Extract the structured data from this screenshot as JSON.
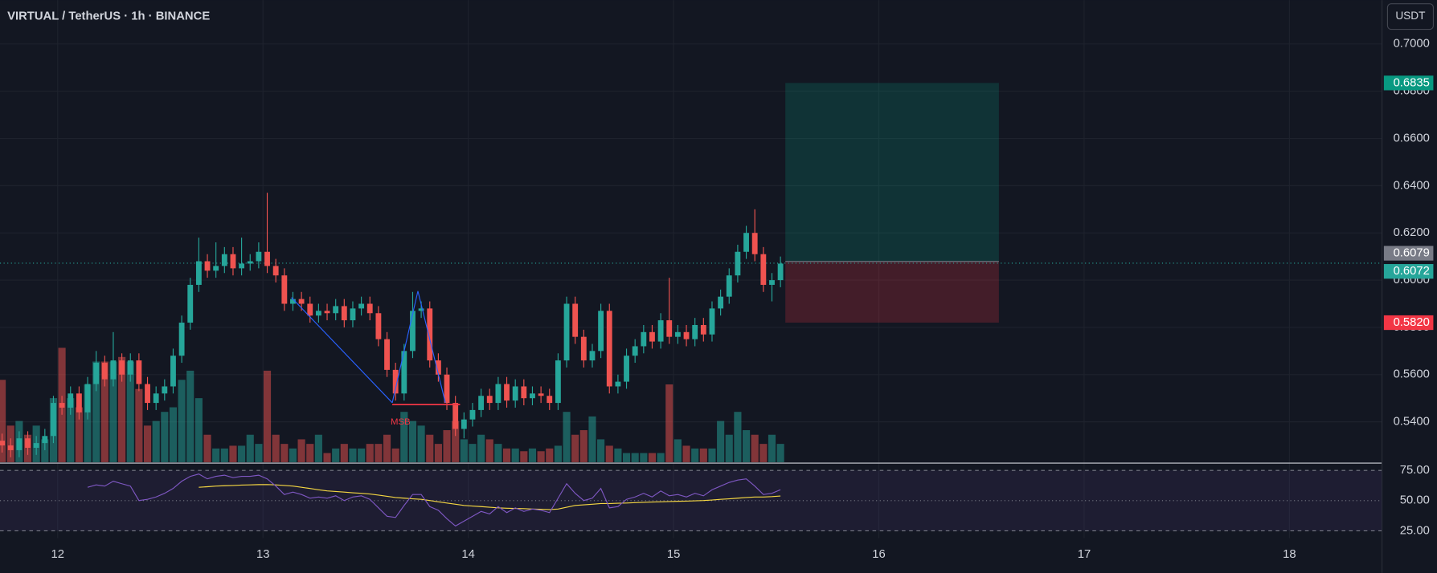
{
  "header": {
    "title": "VIRTUAL / TetherUS · 1h · BINANCE",
    "currency": "USDT"
  },
  "chart_data": {
    "type": "candlestick",
    "x": [
      11.7292,
      11.7708,
      11.8125,
      11.8542,
      11.8958,
      11.9375,
      11.9792,
      12.0208,
      12.0625,
      12.1042,
      12.1458,
      12.1875,
      12.2292,
      12.2708,
      12.3125,
      12.3542,
      12.3958,
      12.4375,
      12.4792,
      12.5208,
      12.5625,
      12.6042,
      12.6458,
      12.6875,
      12.7292,
      12.7708,
      12.8125,
      12.8542,
      12.8958,
      12.9375,
      12.9792,
      13.0208,
      13.0625,
      13.1042,
      13.1458,
      13.1875,
      13.2292,
      13.2708,
      13.3125,
      13.3542,
      13.3958,
      13.4375,
      13.4792,
      13.5208,
      13.5625,
      13.6042,
      13.6458,
      13.6875,
      13.7292,
      13.7708,
      13.8125,
      13.8542,
      13.8958,
      13.9375,
      13.9792,
      14.0208,
      14.0625,
      14.1042,
      14.1458,
      14.1875,
      14.2292,
      14.2708,
      14.3125,
      14.3542,
      14.3958,
      14.4375,
      14.4792,
      14.5208,
      14.5625,
      14.6042,
      14.6458,
      14.6875,
      14.7292,
      14.7708,
      14.8125,
      14.8542,
      14.8958,
      14.9375,
      14.9792,
      15.0208,
      15.0625,
      15.1042,
      15.1458,
      15.1875,
      15.2292,
      15.2708,
      15.3125,
      15.3542,
      15.3958,
      15.4375,
      15.4792,
      15.5208
    ],
    "open": [
      0.532,
      0.53,
      0.528,
      0.533,
      0.529,
      0.531,
      0.534,
      0.548,
      0.546,
      0.552,
      0.544,
      0.556,
      0.565,
      0.558,
      0.566,
      0.56,
      0.566,
      0.556,
      0.548,
      0.552,
      0.555,
      0.568,
      0.582,
      0.598,
      0.608,
      0.604,
      0.606,
      0.611,
      0.605,
      0.607,
      0.608,
      0.612,
      0.606,
      0.602,
      0.59,
      0.592,
      0.59,
      0.585,
      0.587,
      0.586,
      0.589,
      0.583,
      0.588,
      0.59,
      0.586,
      0.575,
      0.562,
      0.552,
      0.57,
      0.587,
      0.588,
      0.566,
      0.56,
      0.548,
      0.537,
      0.541,
      0.545,
      0.551,
      0.548,
      0.556,
      0.549,
      0.555,
      0.55,
      0.552,
      0.551,
      0.548,
      0.566,
      0.59,
      0.576,
      0.566,
      0.57,
      0.587,
      0.555,
      0.557,
      0.568,
      0.572,
      0.578,
      0.574,
      0.583,
      0.576,
      0.578,
      0.575,
      0.581,
      0.577,
      0.588,
      0.593,
      0.602,
      0.612,
      0.62,
      0.611,
      0.598,
      0.6
    ],
    "high": [
      0.535,
      0.533,
      0.536,
      0.536,
      0.534,
      0.537,
      0.551,
      0.551,
      0.555,
      0.555,
      0.559,
      0.57,
      0.568,
      0.578,
      0.569,
      0.569,
      0.569,
      0.559,
      0.555,
      0.558,
      0.571,
      0.585,
      0.601,
      0.618,
      0.611,
      0.616,
      0.614,
      0.614,
      0.618,
      0.611,
      0.616,
      0.637,
      0.609,
      0.605,
      0.595,
      0.595,
      0.593,
      0.59,
      0.59,
      0.592,
      0.592,
      0.591,
      0.593,
      0.593,
      0.589,
      0.578,
      0.565,
      0.573,
      0.595,
      0.591,
      0.591,
      0.569,
      0.563,
      0.551,
      0.544,
      0.548,
      0.554,
      0.554,
      0.559,
      0.559,
      0.558,
      0.558,
      0.555,
      0.555,
      0.554,
      0.569,
      0.593,
      0.593,
      0.579,
      0.573,
      0.59,
      0.59,
      0.56,
      0.571,
      0.575,
      0.581,
      0.581,
      0.586,
      0.601,
      0.581,
      0.581,
      0.584,
      0.584,
      0.591,
      0.596,
      0.605,
      0.615,
      0.623,
      0.63,
      0.614,
      0.603,
      0.61
    ],
    "low": [
      0.527,
      0.525,
      0.525,
      0.526,
      0.526,
      0.528,
      0.531,
      0.543,
      0.543,
      0.541,
      0.541,
      0.553,
      0.555,
      0.555,
      0.557,
      0.557,
      0.553,
      0.545,
      0.545,
      0.549,
      0.552,
      0.565,
      0.579,
      0.595,
      0.601,
      0.601,
      0.603,
      0.602,
      0.602,
      0.604,
      0.605,
      0.603,
      0.599,
      0.587,
      0.587,
      0.587,
      0.582,
      0.582,
      0.583,
      0.583,
      0.58,
      0.58,
      0.585,
      0.583,
      0.572,
      0.559,
      0.549,
      0.549,
      0.567,
      0.584,
      0.563,
      0.557,
      0.545,
      0.534,
      0.533,
      0.538,
      0.542,
      0.545,
      0.545,
      0.546,
      0.546,
      0.547,
      0.547,
      0.548,
      0.545,
      0.545,
      0.563,
      0.573,
      0.563,
      0.563,
      0.567,
      0.552,
      0.552,
      0.554,
      0.565,
      0.569,
      0.571,
      0.571,
      0.573,
      0.573,
      0.572,
      0.572,
      0.574,
      0.574,
      0.585,
      0.59,
      0.599,
      0.609,
      0.608,
      0.595,
      0.591,
      0.597
    ],
    "close": [
      0.53,
      0.528,
      0.533,
      0.529,
      0.531,
      0.534,
      0.548,
      0.546,
      0.552,
      0.544,
      0.556,
      0.565,
      0.558,
      0.566,
      0.56,
      0.566,
      0.556,
      0.548,
      0.552,
      0.555,
      0.568,
      0.582,
      0.598,
      0.608,
      0.604,
      0.606,
      0.611,
      0.605,
      0.607,
      0.608,
      0.612,
      0.606,
      0.602,
      0.59,
      0.592,
      0.59,
      0.585,
      0.587,
      0.586,
      0.589,
      0.583,
      0.588,
      0.59,
      0.586,
      0.575,
      0.562,
      0.552,
      0.57,
      0.587,
      0.588,
      0.566,
      0.56,
      0.548,
      0.537,
      0.541,
      0.545,
      0.551,
      0.548,
      0.556,
      0.549,
      0.555,
      0.55,
      0.552,
      0.551,
      0.548,
      0.566,
      0.59,
      0.576,
      0.566,
      0.57,
      0.587,
      0.555,
      0.557,
      0.568,
      0.572,
      0.578,
      0.574,
      0.583,
      0.576,
      0.578,
      0.575,
      0.581,
      0.577,
      0.588,
      0.593,
      0.602,
      0.612,
      0.62,
      0.611,
      0.598,
      0.6,
      0.607
    ],
    "volume": [
      90,
      40,
      45,
      30,
      40,
      25,
      70,
      125,
      70,
      60,
      85,
      110,
      110,
      110,
      115,
      110,
      80,
      40,
      45,
      55,
      60,
      90,
      100,
      70,
      30,
      15,
      15,
      18,
      18,
      30,
      20,
      100,
      30,
      20,
      15,
      25,
      20,
      30,
      10,
      15,
      20,
      15,
      15,
      20,
      20,
      30,
      15,
      55,
      45,
      40,
      30,
      20,
      35,
      45,
      25,
      20,
      30,
      25,
      20,
      15,
      15,
      12,
      15,
      12,
      15,
      18,
      55,
      30,
      35,
      50,
      25,
      18,
      15,
      10,
      10,
      10,
      10,
      10,
      85,
      25,
      18,
      15,
      15,
      15,
      45,
      30,
      55,
      35,
      30,
      20,
      30,
      20
    ],
    "up_color": "#26a69a",
    "down_color": "#ef5350",
    "xlim": [
      11.719,
      18.451
    ],
    "xticks": [
      12,
      13,
      14,
      15,
      16,
      17,
      18
    ],
    "ylim": [
      0.5229,
      0.7186
    ],
    "yticks": [
      {
        "value": 0.7,
        "label": "0.7000"
      },
      {
        "value": 0.68,
        "label": "0.6800"
      },
      {
        "value": 0.66,
        "label": "0.6600"
      },
      {
        "value": 0.64,
        "label": "0.6400"
      },
      {
        "value": 0.62,
        "label": "0.6200"
      },
      {
        "value": 0.6,
        "label": "0.6000"
      },
      {
        "value": 0.58,
        "label": "0.5800"
      },
      {
        "value": 0.56,
        "label": "0.5600"
      },
      {
        "value": 0.54,
        "label": "0.5400"
      }
    ],
    "position": {
      "start": 15.5446,
      "end": 16.5848,
      "entry": 0.6079,
      "target": 0.6835,
      "stop": {
        "value": 0.582,
        "label": "0.5820"
      }
    },
    "last_price": 0.6072,
    "annotation": "MSB",
    "rsi": {
      "ylim": [
        18.9,
        79.5
      ],
      "yticks": [
        {
          "value": 75,
          "label": "75.00"
        },
        {
          "value": 50,
          "label": "50.00"
        },
        {
          "value": 25,
          "label": "25.00"
        }
      ],
      "values": [
        null,
        null,
        null,
        null,
        null,
        null,
        null,
        null,
        null,
        null,
        61,
        63,
        62,
        66,
        64,
        62,
        50,
        51,
        53,
        56,
        60,
        66,
        70,
        72,
        68,
        70,
        71,
        69,
        70,
        70,
        71,
        68,
        62,
        55,
        57,
        55,
        52,
        53,
        52,
        54,
        50,
        53,
        54,
        51,
        44,
        37,
        36,
        46,
        55,
        55,
        45,
        42,
        35,
        29,
        33,
        37,
        41,
        39,
        45,
        40,
        44,
        41,
        43,
        42,
        40,
        52,
        64,
        56,
        50,
        52,
        60,
        44,
        45,
        51,
        53,
        56,
        53,
        58,
        54,
        55,
        53,
        56,
        54,
        59,
        62,
        65,
        67,
        68,
        62,
        55,
        56,
        59
      ],
      "ma": [
        null,
        null,
        null,
        null,
        null,
        null,
        null,
        null,
        null,
        null,
        null,
        null,
        null,
        null,
        null,
        null,
        null,
        null,
        null,
        null,
        null,
        null,
        null,
        61,
        61.5,
        62,
        62.3,
        62.5,
        62.8,
        63,
        63.2,
        63.3,
        63,
        62.5,
        62,
        61,
        60,
        59,
        58,
        57.5,
        57,
        56.5,
        56,
        55.5,
        54.5,
        53.5,
        52.5,
        52,
        51.5,
        51,
        50,
        49,
        48,
        47,
        46,
        45.5,
        45,
        44.5,
        44,
        43.7,
        43.5,
        43.3,
        43,
        42.8,
        42.6,
        43,
        44.5,
        46,
        46.5,
        47,
        47.5,
        47.5,
        47.8,
        48,
        48.3,
        48.6,
        48.8,
        49,
        49.2,
        49.4,
        49.6,
        49.8,
        50,
        50.5,
        51,
        51.5,
        52,
        52.5,
        53,
        53,
        53.3,
        53.8
      ],
      "color": "#7e57c2",
      "ma_color": "#f5d742"
    }
  }
}
